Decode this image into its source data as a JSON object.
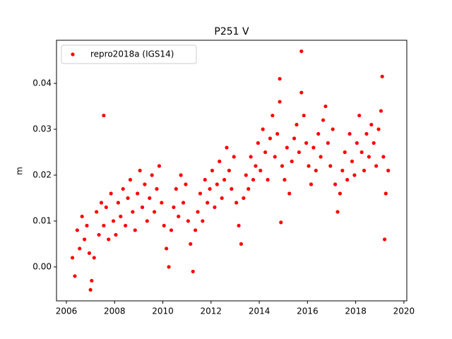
{
  "chart_data": {
    "type": "scatter",
    "title": "P251 V",
    "y_label": "m",
    "x": [
      2006.25,
      2006.35,
      2006.45,
      2006.55,
      2006.65,
      2006.75,
      2006.85,
      2006.95,
      2007.05,
      2007.15,
      2007.25,
      2007.35,
      2007.45,
      2007.55,
      2007.65,
      2007.75,
      2007.85,
      2007.95,
      2008.05,
      2008.15,
      2008.25,
      2008.35,
      2008.45,
      2008.55,
      2008.65,
      2008.75,
      2008.85,
      2008.95,
      2009.05,
      2009.15,
      2009.25,
      2009.35,
      2009.45,
      2009.55,
      2009.65,
      2009.75,
      2009.85,
      2009.95,
      2010.05,
      2010.15,
      2010.25,
      2010.35,
      2010.45,
      2010.55,
      2010.65,
      2010.75,
      2010.85,
      2010.95,
      2011.05,
      2011.15,
      2011.25,
      2011.35,
      2011.45,
      2011.55,
      2011.65,
      2011.75,
      2011.85,
      2011.95,
      2012.05,
      2012.15,
      2012.25,
      2012.35,
      2012.45,
      2012.55,
      2012.65,
      2012.75,
      2012.85,
      2012.95,
      2013.05,
      2013.15,
      2013.25,
      2013.35,
      2013.45,
      2013.55,
      2013.65,
      2013.75,
      2013.85,
      2013.95,
      2014.05,
      2014.15,
      2014.25,
      2014.35,
      2014.45,
      2014.55,
      2014.65,
      2014.75,
      2014.85,
      2014.95,
      2015.05,
      2015.15,
      2015.25,
      2015.35,
      2015.45,
      2015.55,
      2015.65,
      2015.75,
      2015.85,
      2015.95,
      2016.05,
      2016.15,
      2016.25,
      2016.35,
      2016.45,
      2016.55,
      2016.65,
      2016.75,
      2016.85,
      2016.95,
      2017.05,
      2017.15,
      2017.25,
      2017.35,
      2017.45,
      2017.55,
      2017.65,
      2017.75,
      2017.85,
      2017.95,
      2018.05,
      2018.15,
      2018.25,
      2018.35,
      2018.45,
      2018.55,
      2018.65,
      2018.75,
      2018.85,
      2018.95,
      2019.05,
      2019.15,
      2019.25,
      2019.35,
      2007.55,
      2015.75,
      2019.1,
      2014.9,
      2019.2,
      2007.0,
      2014.85
    ],
    "series": [
      {
        "name": "repro2018a (IGS14)",
        "color": "#ff0000",
        "values": [
          0.002,
          -0.002,
          0.008,
          0.004,
          0.011,
          0.006,
          0.009,
          0.003,
          -0.003,
          0.002,
          0.012,
          0.007,
          0.014,
          0.009,
          0.013,
          0.006,
          0.016,
          0.01,
          0.007,
          0.014,
          0.011,
          0.017,
          0.009,
          0.015,
          0.019,
          0.012,
          0.008,
          0.016,
          0.021,
          0.013,
          0.018,
          0.01,
          0.015,
          0.02,
          0.012,
          0.017,
          0.022,
          0.014,
          0.009,
          0.004,
          0.0,
          0.008,
          0.013,
          0.017,
          0.011,
          0.02,
          0.014,
          0.018,
          0.01,
          0.005,
          -0.001,
          0.008,
          0.012,
          0.016,
          0.01,
          0.019,
          0.014,
          0.017,
          0.021,
          0.013,
          0.018,
          0.023,
          0.015,
          0.019,
          0.026,
          0.021,
          0.017,
          0.024,
          0.014,
          0.009,
          0.005,
          0.015,
          0.02,
          0.017,
          0.024,
          0.019,
          0.022,
          0.027,
          0.021,
          0.03,
          0.025,
          0.019,
          0.028,
          0.033,
          0.024,
          0.029,
          0.036,
          0.022,
          0.019,
          0.026,
          0.016,
          0.023,
          0.028,
          0.031,
          0.025,
          0.038,
          0.033,
          0.027,
          0.022,
          0.018,
          0.026,
          0.021,
          0.029,
          0.024,
          0.032,
          0.035,
          0.027,
          0.022,
          0.03,
          0.018,
          0.012,
          0.016,
          0.021,
          0.025,
          0.019,
          0.029,
          0.023,
          0.02,
          0.027,
          0.033,
          0.025,
          0.021,
          0.029,
          0.024,
          0.031,
          0.027,
          0.022,
          0.03,
          0.034,
          0.024,
          0.016,
          0.021,
          0.033,
          0.047,
          0.0415,
          0.0097,
          0.006,
          -0.005,
          0.041
        ]
      }
    ],
    "xlim": [
      2005.59,
      2020.12
    ],
    "ylim": [
      -0.0074,
      0.0494
    ],
    "xticks": [
      2006,
      2008,
      2010,
      2012,
      2014,
      2016,
      2018,
      2020
    ],
    "yticks": [
      {
        "value": 0,
        "label": "0.00"
      },
      0.01,
      0.02,
      0.03,
      0.04
    ],
    "legend": "upper left",
    "grid": false
  }
}
